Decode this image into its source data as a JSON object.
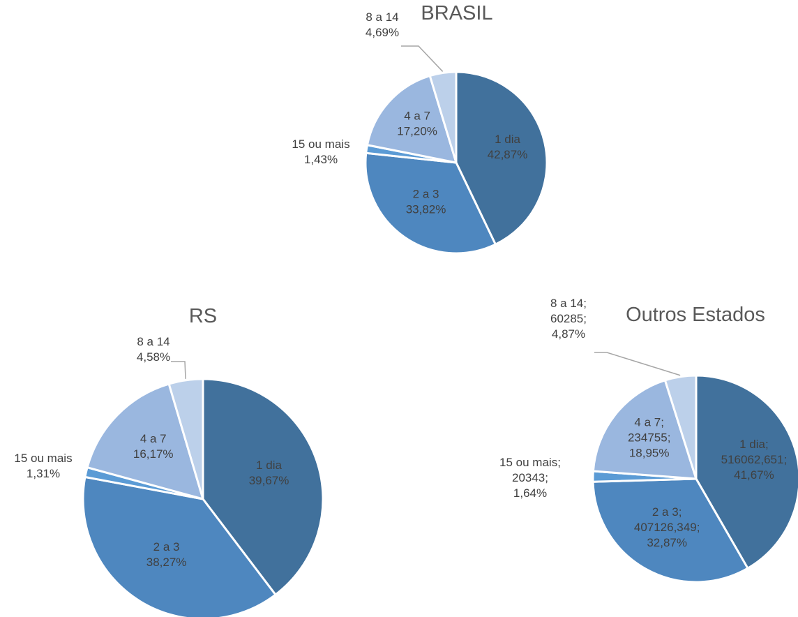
{
  "chart_data": [
    {
      "type": "pie",
      "title": "BRASIL",
      "categories": [
        "1 dia",
        "2 a 3",
        "15 ou mais",
        "4 a 7",
        "8 a 14"
      ],
      "values": [
        42.87,
        33.82,
        1.43,
        17.2,
        4.69
      ],
      "value_labels": [
        "42,87%",
        "33,82%",
        "1,43%",
        "17,20%",
        "4,69%"
      ],
      "colors": [
        "#41719c",
        "#4e87bf",
        "#5b9bd5",
        "#9ab7df",
        "#bcd0ea"
      ]
    },
    {
      "type": "pie",
      "title": "RS",
      "categories": [
        "1 dia",
        "2 a 3",
        "15 ou mais",
        "4 a 7",
        "8 a 14"
      ],
      "values": [
        39.67,
        38.27,
        1.31,
        16.17,
        4.58
      ],
      "value_labels": [
        "39,67%",
        "38,27%",
        "1,31%",
        "16,17%",
        "4,58%"
      ],
      "colors": [
        "#41719c",
        "#4e87bf",
        "#5b9bd5",
        "#9ab7df",
        "#bcd0ea"
      ]
    },
    {
      "type": "pie",
      "title": "Outros Estados",
      "categories": [
        "1 dia",
        "2 a 3",
        "15 ou mais",
        "4 a 7",
        "8 a 14"
      ],
      "values": [
        41.67,
        32.87,
        1.64,
        18.95,
        4.87
      ],
      "value_labels": [
        "41,67%",
        "32,87%",
        "1,64%",
        "18,95%",
        "4,87%"
      ],
      "counts": [
        516062.651,
        407126.349,
        20343,
        234755,
        60285
      ],
      "count_labels": [
        "516062,651",
        "407126,349",
        "20343",
        "234755",
        "60285"
      ],
      "separator": ";",
      "colors": [
        "#41719c",
        "#4e87bf",
        "#5b9bd5",
        "#9ab7df",
        "#bcd0ea"
      ]
    }
  ]
}
